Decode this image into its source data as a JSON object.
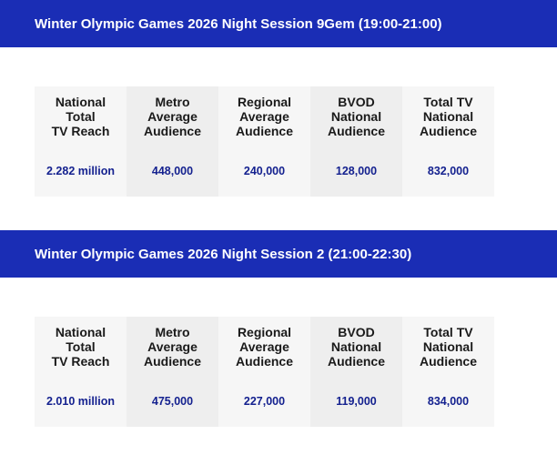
{
  "sessions": [
    {
      "title": "Winter Olympic Games 2026 Night Session 9Gem (19:00-21:00)",
      "headers": [
        [
          "National",
          "Total",
          "TV Reach"
        ],
        [
          "Metro",
          "Average",
          "Audience"
        ],
        [
          "Regional",
          "Average",
          "Audience"
        ],
        [
          "BVOD",
          "National",
          "Audience"
        ],
        [
          "Total TV",
          "National",
          "Audience"
        ]
      ],
      "values": [
        "2.282 million",
        "448,000",
        "240,000",
        "128,000",
        "832,000"
      ]
    },
    {
      "title": "Winter Olympic Games 2026 Night Session 2 (21:00-22:30)",
      "headers": [
        [
          "National",
          "Total",
          "TV Reach"
        ],
        [
          "Metro",
          "Average",
          "Audience"
        ],
        [
          "Regional",
          "Average",
          "Audience"
        ],
        [
          "BVOD",
          "National",
          "Audience"
        ],
        [
          "Total TV",
          "National",
          "Audience"
        ]
      ],
      "values": [
        "2.010 million",
        "475,000",
        "227,000",
        "119,000",
        "834,000"
      ]
    }
  ],
  "colors": {
    "banner": "#1a2db5",
    "value_text": "#14218f",
    "header_text": "#1a1a1a"
  }
}
